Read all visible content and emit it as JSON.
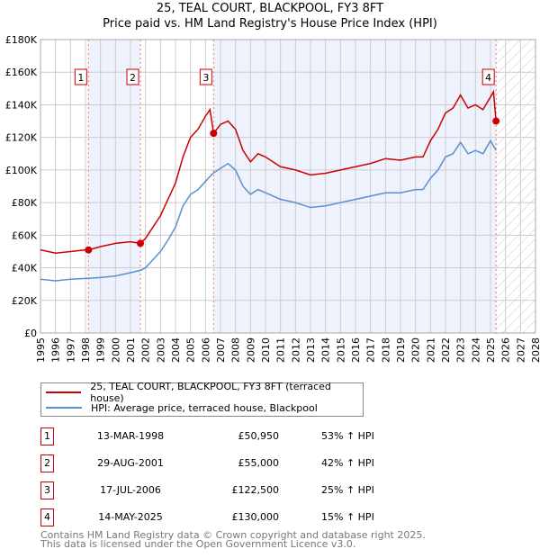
{
  "chart_data": {
    "type": "line",
    "title": "25, TEAL COURT, BLACKPOOL, FY3 8FT",
    "subtitle": "Price paid vs. HM Land Registry's House Price Index (HPI)",
    "xlim": [
      1995,
      2028
    ],
    "ylim": [
      0,
      180000
    ],
    "x_ticks": [
      "1995",
      "1996",
      "1997",
      "1998",
      "1999",
      "2000",
      "2001",
      "2002",
      "2003",
      "2004",
      "2005",
      "2006",
      "2007",
      "2008",
      "2009",
      "2010",
      "2011",
      "2012",
      "2013",
      "2014",
      "2015",
      "2016",
      "2017",
      "2018",
      "2019",
      "2020",
      "2021",
      "2022",
      "2023",
      "2024",
      "2025",
      "2026",
      "2027",
      "2028"
    ],
    "y_ticks": [
      {
        "v": 0,
        "label": "£0"
      },
      {
        "v": 20000,
        "label": "£20K"
      },
      {
        "v": 40000,
        "label": "£40K"
      },
      {
        "v": 60000,
        "label": "£60K"
      },
      {
        "v": 80000,
        "label": "£80K"
      },
      {
        "v": 100000,
        "label": "£100K"
      },
      {
        "v": 120000,
        "label": "£120K"
      },
      {
        "v": 140000,
        "label": "£140K"
      },
      {
        "v": 160000,
        "label": "£160K"
      },
      {
        "v": 180000,
        "label": "£180K"
      }
    ],
    "grid": true,
    "series": [
      {
        "name": "25, TEAL COURT, BLACKPOOL, FY3 8FT (terraced house)",
        "color": "#cc0000",
        "x": [
          1995,
          1996,
          1997,
          1998,
          1998.2,
          1999,
          2000,
          2001,
          2001.66,
          2002,
          2002.5,
          2003,
          2003.5,
          2004,
          2004.5,
          2005,
          2005.5,
          2006,
          2006.3,
          2006.54,
          2007,
          2007.5,
          2008,
          2008.5,
          2009,
          2009.5,
          2010,
          2011,
          2012,
          2013,
          2014,
          2015,
          2016,
          2017,
          2018,
          2019,
          2020,
          2020.5,
          2021,
          2021.5,
          2022,
          2022.5,
          2023,
          2023.5,
          2024,
          2024.5,
          2025.2,
          2025.37
        ],
        "y": [
          51000,
          49000,
          50000,
          51000,
          50950,
          53000,
          55000,
          56000,
          55000,
          58000,
          65000,
          72000,
          82000,
          92000,
          108000,
          120000,
          125000,
          133000,
          137000,
          122500,
          128000,
          130000,
          125000,
          112000,
          105000,
          110000,
          108000,
          102000,
          100000,
          97000,
          98000,
          100000,
          102000,
          104000,
          107000,
          106000,
          108000,
          108000,
          118000,
          125000,
          135000,
          138000,
          146000,
          138000,
          140000,
          137000,
          148000,
          130000
        ]
      },
      {
        "name": "HPI: Average price, terraced house, Blackpool",
        "color": "#5b8fd0",
        "x": [
          1995,
          1996,
          1997,
          1998,
          1999,
          2000,
          2001,
          2001.7,
          2002,
          2002.5,
          2003,
          2003.5,
          2004,
          2004.5,
          2005,
          2005.5,
          2006,
          2006.5,
          2007,
          2007.5,
          2008,
          2008.5,
          2009,
          2009.5,
          2010,
          2011,
          2012,
          2013,
          2014,
          2015,
          2016,
          2017,
          2018,
          2019,
          2020,
          2020.5,
          2021,
          2021.5,
          2022,
          2022.5,
          2023,
          2023.5,
          2024,
          2024.5,
          2025,
          2025.37
        ],
        "y": [
          33000,
          32000,
          33000,
          33500,
          34000,
          35000,
          37000,
          38500,
          40000,
          45000,
          50000,
          57000,
          65000,
          78000,
          85000,
          88000,
          93000,
          98000,
          101000,
          104000,
          100000,
          90000,
          85000,
          88000,
          86000,
          82000,
          80000,
          77000,
          78000,
          80000,
          82000,
          84000,
          86000,
          86000,
          88000,
          88000,
          95000,
          100000,
          108000,
          110000,
          117000,
          110000,
          112000,
          110000,
          118000,
          112000
        ]
      }
    ],
    "sales": [
      {
        "label": "1",
        "x": 1998.2,
        "price": 50950,
        "date": "13-MAR-1998",
        "price_text": "£50,950",
        "hpi": "53% ↑ HPI"
      },
      {
        "label": "2",
        "x": 2001.66,
        "price": 55000,
        "date": "29-AUG-2001",
        "price_text": "£55,000",
        "hpi": "42% ↑ HPI"
      },
      {
        "label": "3",
        "x": 2006.54,
        "price": 122500,
        "date": "17-JUL-2006",
        "price_text": "£122,500",
        "hpi": "25% ↑ HPI"
      },
      {
        "label": "4",
        "x": 2025.37,
        "price": 130000,
        "date": "14-MAY-2025",
        "price_text": "£130,000",
        "hpi": "15% ↑ HPI"
      }
    ],
    "forecast_from": 2025.4,
    "legend_position": "below"
  },
  "legend": {
    "red": "25, TEAL COURT, BLACKPOOL, FY3 8FT (terraced house)",
    "blue": "HPI: Average price, terraced house, Blackpool"
  },
  "footer": {
    "line1": "Contains HM Land Registry data © Crown copyright and database right 2025.",
    "line2": "This data is licensed under the Open Government Licence v3.0."
  }
}
